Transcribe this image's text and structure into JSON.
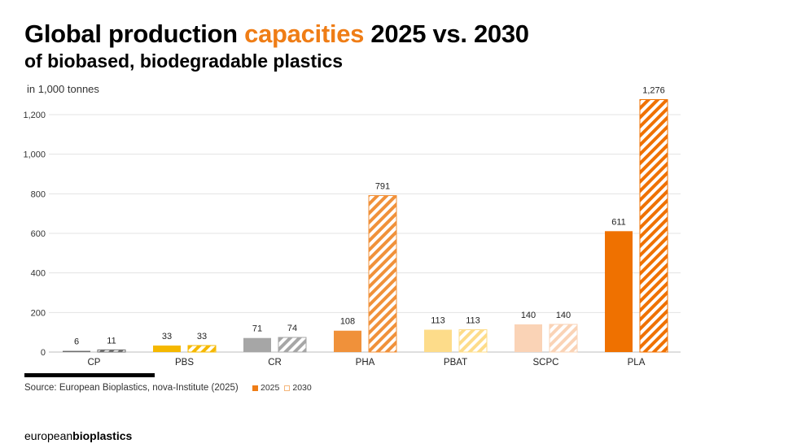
{
  "title": {
    "part1": "Global production ",
    "accent": "capacities",
    "part2": " 2025 vs. 2030",
    "subtitle": "of biobased, biodegradable plastics"
  },
  "unit_label": "in 1,000 tonnes",
  "source": "Source: European Bioplastics, nova-Institute (2025)",
  "legend": {
    "solid": "2025",
    "hatched": "2030"
  },
  "brand": {
    "light": "european",
    "bold": "bioplastics"
  },
  "chart_data": {
    "type": "bar",
    "title": "Global production capacities 2025 vs. 2030 of biobased, biodegradable plastics",
    "ylabel": "in 1,000 tonnes",
    "xlabel": "",
    "ylim": [
      0,
      1300
    ],
    "yticks": [
      0,
      200,
      400,
      600,
      800,
      1000,
      1200
    ],
    "ytick_labels": [
      "0",
      "200",
      "400",
      "600",
      "800",
      "1,000",
      "1,200"
    ],
    "grid": true,
    "legend_position": "bottom",
    "categories": [
      "CP",
      "PBS",
      "CR",
      "PHA",
      "PBAT",
      "SCPC",
      "PLA"
    ],
    "category_colors": [
      "#6E6E6E",
      "#F5B800",
      "#A6A6A6",
      "#F0913A",
      "#FDDC8A",
      "#FAD3B6",
      "#EF7100"
    ],
    "series": [
      {
        "name": "2025",
        "style": "solid",
        "values": [
          6,
          33,
          71,
          108,
          113,
          140,
          611
        ],
        "labels": [
          "6",
          "33",
          "71",
          "108",
          "113",
          "140",
          "611"
        ]
      },
      {
        "name": "2030",
        "style": "hatched",
        "values": [
          11,
          33,
          74,
          791,
          113,
          140,
          1276
        ],
        "labels": [
          "11",
          "33",
          "74",
          "791",
          "113",
          "140",
          "1,276"
        ]
      }
    ]
  }
}
